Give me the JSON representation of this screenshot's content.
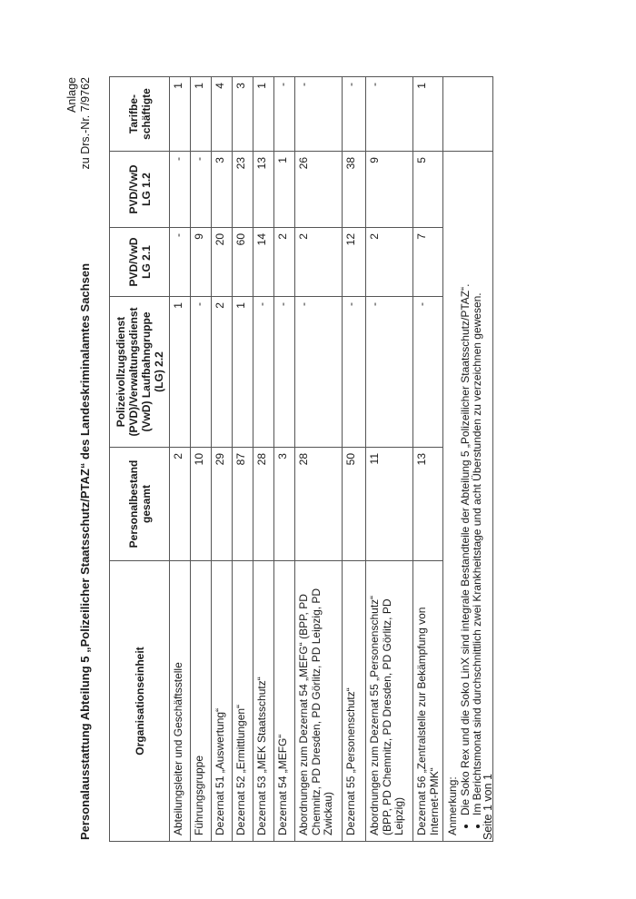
{
  "header": {
    "anlage": "Anlage",
    "drs": "zu Drs.-Nr. 7/9762"
  },
  "title": "Personalausstattung Abteilung 5 „Polizeilicher Staatsschutz/PTAZ“ des Landeskriminalamtes Sachsen",
  "table": {
    "columns": [
      "Organisationseinheit",
      "Personalbestand gesamt",
      "Polizeivollzugsdienst (PVD)/Verwaltungsdienst (VwD) Laufbahngruppe (LG) 2.2",
      "PVD/VwD LG 2.1",
      "PVD/VwD LG 1.2",
      "Tarifbe-schäftigte"
    ],
    "rows": [
      {
        "unit": "Abteilungsleiter und Geschäftsstelle",
        "total": "2",
        "lg22": "1",
        "lg21": "-",
        "lg12": "-",
        "tarif": "1"
      },
      {
        "unit": "Führungsgruppe",
        "total": "10",
        "lg22": "-",
        "lg21": "9",
        "lg12": "-",
        "tarif": "1"
      },
      {
        "unit": "Dezernat 51 „Auswertung“",
        "total": "29",
        "lg22": "2",
        "lg21": "20",
        "lg12": "3",
        "tarif": "4"
      },
      {
        "unit": "Dezernat 52 „Ermittlungen“",
        "total": "87",
        "lg22": "1",
        "lg21": "60",
        "lg12": "23",
        "tarif": "3"
      },
      {
        "unit": "Dezernat 53 „MEK Staatsschutz“",
        "total": "28",
        "lg22": "-",
        "lg21": "14",
        "lg12": "13",
        "tarif": "1"
      },
      {
        "unit": "Dezernat 54 „MEFG“",
        "total": "3",
        "lg22": "-",
        "lg21": "2",
        "lg12": "1",
        "tarif": "-"
      },
      {
        "unit": "Abordnungen zum Dezernat 54 „MEFG“ (BPP, PD Chemnitz, PD Dresden, PD Görlitz, PD Leipzig, PD Zwickau)",
        "total": "28",
        "lg22": "-",
        "lg21": "2",
        "lg12": "26",
        "tarif": "-"
      },
      {
        "unit": "Dezernat 55 „Personenschutz“",
        "total": "50",
        "lg22": "-",
        "lg21": "12",
        "lg12": "38",
        "tarif": "-"
      },
      {
        "unit": "Abordnungen zum Dezernat 55 „Personenschutz“ (BPP, PD Chemnitz, PD Dresden, PD Görlitz, PD Leipzig)",
        "total": "11",
        "lg22": "-",
        "lg21": "2",
        "lg12": "9",
        "tarif": "-"
      },
      {
        "unit": "Dezernat 56 „Zentralstelle zur Bekämpfung von Internet-PMK“",
        "total": "13",
        "lg22": "-",
        "lg21": "7",
        "lg12": "5",
        "tarif": "1"
      }
    ],
    "note": {
      "label": "Anmerkung:",
      "items": [
        "Die Soko Rex und die Soko LinX sind integrale Bestandteile der Abteilung 5 „Polizeilicher Staatsschutz/PTAZ“.",
        "Im Berichtsmonat sind durchschnittlich zwei Krankheitstage und acht Überstunden zu verzeichnen gewesen."
      ]
    }
  },
  "footer": {
    "page": "Seite 1 von 1"
  }
}
